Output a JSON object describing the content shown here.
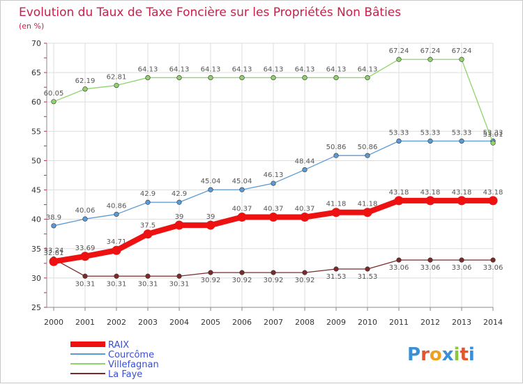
{
  "chart_data": {
    "type": "line",
    "title": "Evolution du Taux de Taxe Foncière sur les Propriétés Non Bâties",
    "unit_label": "(en %)",
    "x": [
      "2000",
      "2001",
      "2002",
      "2003",
      "2004",
      "2005",
      "2006",
      "2007",
      "2008",
      "2009",
      "2010",
      "2011",
      "2012",
      "2013",
      "2014"
    ],
    "ylim": [
      25,
      70
    ],
    "yticks": [
      25,
      30,
      35,
      40,
      45,
      50,
      55,
      60,
      65,
      70
    ],
    "grid": true,
    "legend_position": "bottom-left",
    "series": [
      {
        "name": "La Faye",
        "color": "#7a2a2a",
        "values": [
          33.24,
          30.31,
          30.31,
          30.31,
          30.31,
          30.92,
          30.92,
          30.92,
          30.92,
          31.53,
          31.53,
          33.06,
          33.06,
          33.06,
          33.06
        ],
        "labels": [
          "33.24",
          "30.31",
          "30.31",
          "30.31",
          "30.31",
          "30.92",
          "30.92",
          "30.92",
          "30.92",
          "31.53",
          "31.53",
          "33.06",
          "33.06",
          "33.06",
          "33.06"
        ]
      },
      {
        "name": "Courcôme",
        "color": "#5b9bd5",
        "values": [
          38.9,
          40.06,
          40.86,
          42.9,
          42.9,
          45.04,
          45.04,
          46.13,
          48.44,
          50.86,
          50.86,
          53.33,
          53.33,
          53.33,
          53.33
        ],
        "labels": [
          "38.9",
          "40.06",
          "40.86",
          "42.9",
          "42.9",
          "45.04",
          "45.04",
          "46.13",
          "48.44",
          "50.86",
          "50.86",
          "53.33",
          "53.33",
          "53.33",
          "53.33"
        ]
      },
      {
        "name": "Villefagnan",
        "color": "#8fd46a",
        "values": [
          60.05,
          62.19,
          62.81,
          64.13,
          64.13,
          64.13,
          64.13,
          64.13,
          64.13,
          64.13,
          64.13,
          67.24,
          67.24,
          67.24,
          53.01
        ],
        "labels": [
          "60.05",
          "62.19",
          "62.81",
          "64.13",
          "64.13",
          "64.13",
          "64.13",
          "64.13",
          "64.13",
          "64.13",
          "64.13",
          "67.24",
          "67.24",
          "67.24",
          "53.01"
        ]
      },
      {
        "name": "RAIX",
        "color": "#ee1111",
        "values": [
          32.81,
          33.69,
          34.71,
          37.5,
          39,
          39,
          40.37,
          40.37,
          40.37,
          41.18,
          41.18,
          43.18,
          43.18,
          43.18,
          43.18
        ],
        "labels": [
          "32.81",
          "33.69",
          "34.71",
          "37.5",
          "39",
          "39",
          "40.37",
          "40.37",
          "40.37",
          "41.18",
          "41.18",
          "43.18",
          "43.18",
          "43.18",
          "43.18"
        ]
      }
    ],
    "legend_order": [
      "RAIX",
      "Courcôme",
      "Villefagnan",
      "La Faye"
    ]
  },
  "branding": {
    "logo_text": "Proxiti",
    "letter_colors": [
      "#3b8fd6",
      "#e4572e",
      "#f0a020",
      "#3b8fd6",
      "#8cc63f",
      "#e4572e",
      "#3b8fd6"
    ]
  }
}
